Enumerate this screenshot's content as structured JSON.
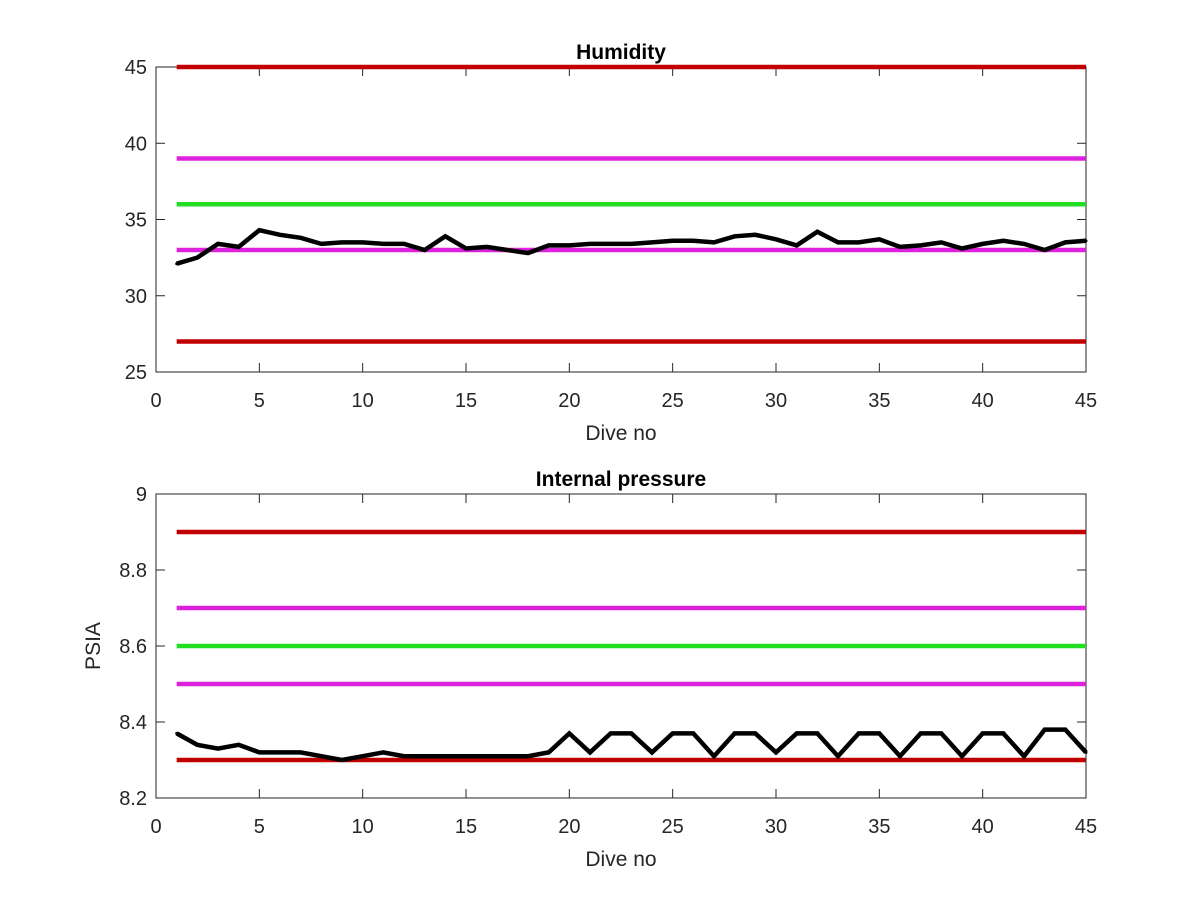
{
  "chart_data": [
    {
      "type": "line",
      "title": "Humidity",
      "xlabel": "Dive no",
      "ylabel": "",
      "xlim": [
        0,
        45
      ],
      "ylim": [
        25,
        45
      ],
      "xticks": [
        0,
        5,
        10,
        15,
        20,
        25,
        30,
        35,
        40,
        45
      ],
      "yticks": [
        25,
        30,
        35,
        40,
        45
      ],
      "grid": false,
      "legend": "none",
      "thresholds": [
        {
          "y": 45,
          "color": "#c00000",
          "x": [
            1,
            45
          ]
        },
        {
          "y": 39,
          "color": "#dd22dd",
          "x": [
            1,
            45
          ]
        },
        {
          "y": 36,
          "color": "#22dd22",
          "x": [
            1,
            45
          ]
        },
        {
          "y": 33,
          "color": "#dd22dd",
          "x": [
            1,
            45
          ]
        },
        {
          "y": 27,
          "color": "#c00000",
          "x": [
            1,
            45
          ]
        }
      ],
      "series": [
        {
          "color": "#000000",
          "x": [
            1,
            2,
            3,
            4,
            5,
            6,
            7,
            8,
            9,
            10,
            11,
            12,
            13,
            14,
            15,
            16,
            17,
            18,
            19,
            20,
            21,
            22,
            23,
            24,
            25,
            26,
            27,
            28,
            29,
            30,
            31,
            32,
            33,
            34,
            35,
            36,
            37,
            38,
            39,
            40,
            41,
            42,
            43,
            44,
            45
          ],
          "values": [
            32.1,
            32.5,
            33.4,
            33.2,
            34.3,
            34.0,
            33.8,
            33.4,
            33.5,
            33.5,
            33.4,
            33.4,
            33.0,
            33.9,
            33.1,
            33.2,
            33.0,
            32.8,
            33.3,
            33.3,
            33.4,
            33.4,
            33.4,
            33.5,
            33.6,
            33.6,
            33.5,
            33.9,
            34.0,
            33.7,
            33.3,
            34.2,
            33.5,
            33.5,
            33.7,
            33.2,
            33.3,
            33.5,
            33.1,
            33.4,
            33.6,
            33.4,
            33.0,
            33.5,
            33.6
          ]
        }
      ]
    },
    {
      "type": "line",
      "title": "Internal pressure",
      "xlabel": "Dive no",
      "ylabel": "PSIA",
      "xlim": [
        0,
        45
      ],
      "ylim": [
        8.2,
        9
      ],
      "xticks": [
        0,
        5,
        10,
        15,
        20,
        25,
        30,
        35,
        40,
        45
      ],
      "yticks": [
        8.2,
        8.4,
        8.6,
        8.8,
        9
      ],
      "grid": false,
      "legend": "none",
      "thresholds": [
        {
          "y": 8.9,
          "color": "#c00000",
          "x": [
            1,
            45
          ]
        },
        {
          "y": 8.7,
          "color": "#dd22dd",
          "x": [
            1,
            45
          ]
        },
        {
          "y": 8.6,
          "color": "#22dd22",
          "x": [
            1,
            45
          ]
        },
        {
          "y": 8.5,
          "color": "#dd22dd",
          "x": [
            1,
            45
          ]
        },
        {
          "y": 8.3,
          "color": "#c00000",
          "x": [
            1,
            45
          ]
        }
      ],
      "series": [
        {
          "color": "#000000",
          "x": [
            1,
            2,
            3,
            4,
            5,
            6,
            7,
            8,
            9,
            10,
            11,
            12,
            13,
            14,
            15,
            16,
            17,
            18,
            19,
            20,
            21,
            22,
            23,
            24,
            25,
            26,
            27,
            28,
            29,
            30,
            31,
            32,
            33,
            34,
            35,
            36,
            37,
            38,
            39,
            40,
            41,
            42,
            43,
            44,
            45
          ],
          "values": [
            8.37,
            8.34,
            8.33,
            8.34,
            8.32,
            8.32,
            8.32,
            8.31,
            8.3,
            8.31,
            8.32,
            8.31,
            8.31,
            8.31,
            8.31,
            8.31,
            8.31,
            8.31,
            8.32,
            8.37,
            8.32,
            8.37,
            8.37,
            8.32,
            8.37,
            8.37,
            8.31,
            8.37,
            8.37,
            8.32,
            8.37,
            8.37,
            8.31,
            8.37,
            8.37,
            8.31,
            8.37,
            8.37,
            8.31,
            8.37,
            8.37,
            8.31,
            8.38,
            8.38,
            8.32
          ]
        }
      ]
    }
  ]
}
